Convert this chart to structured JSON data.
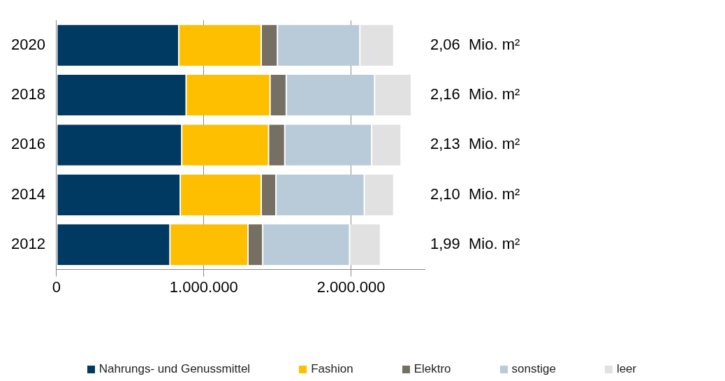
{
  "chart_data": {
    "type": "bar",
    "orientation": "horizontal",
    "stacked": true,
    "categories": [
      "2020",
      "2018",
      "2016",
      "2014",
      "2012"
    ],
    "series": [
      {
        "name": "Nahrungs- und Genussmittel",
        "color": "#003a63",
        "values": [
          830000,
          880000,
          850000,
          840000,
          770000
        ]
      },
      {
        "name": "Fashion",
        "color": "#fdbf00",
        "values": [
          560000,
          570000,
          590000,
          550000,
          530000
        ]
      },
      {
        "name": "Elektro",
        "color": "#766f63",
        "values": [
          110000,
          110000,
          110000,
          100000,
          100000
        ]
      },
      {
        "name": "sonstige",
        "color": "#b9cbd9",
        "values": [
          560000,
          600000,
          590000,
          600000,
          590000
        ]
      },
      {
        "name": "leer",
        "color": "#e1e1e1",
        "values": [
          230000,
          250000,
          200000,
          200000,
          210000
        ]
      }
    ],
    "xlim": [
      0,
      2500000
    ],
    "xticks": [
      0,
      {
        "value": 1000000,
        "label": "1.000.000"
      },
      {
        "value": 2000000,
        "label": "2.000.000"
      }
    ],
    "grid": "x",
    "legend": "bottom",
    "annotations": [
      "2,06  Mio. m²",
      "2,16  Mio. m²",
      "2,13  Mio. m²",
      "2,10  Mio. m²",
      "1,99  Mio. m²"
    ]
  }
}
